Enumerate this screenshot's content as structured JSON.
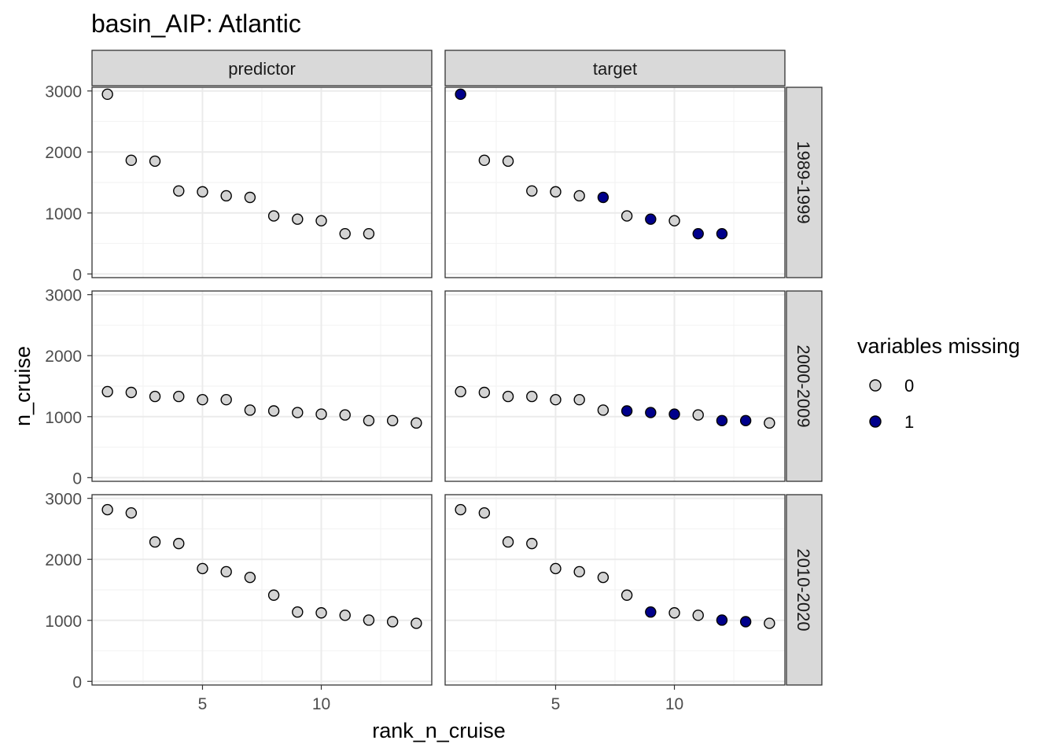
{
  "chart_data": {
    "type": "scatter",
    "title": "basin_AIP: Atlantic",
    "xlabel": "rank_n_cruise",
    "ylabel": "n_cruise",
    "xlim": [
      0.35,
      14.65
    ],
    "ylim": [
      -60,
      3060
    ],
    "x_ticks": [
      5,
      10
    ],
    "y_ticks": [
      0,
      1000,
      2000,
      3000
    ],
    "grid": true,
    "columns": [
      "predictor",
      "target"
    ],
    "rows": [
      "1989-1999",
      "2000-2009",
      "2010-2020"
    ],
    "legend": {
      "title": "variables missing",
      "placement": "right",
      "entries": [
        {
          "label": "0",
          "color": "#d3d3d3"
        },
        {
          "label": "1",
          "color": "#00008b"
        }
      ]
    },
    "panels_data": [
      {
        "period": "1989-1999",
        "x": [
          1,
          2,
          3,
          4,
          5,
          6,
          7,
          8,
          9,
          10,
          11,
          12
        ],
        "y": [
          2946,
          1863,
          1849,
          1361,
          1347,
          1281,
          1255,
          951,
          898,
          872,
          660,
          660
        ],
        "target_missing": [
          1,
          0,
          0,
          0,
          0,
          0,
          1,
          0,
          1,
          0,
          1,
          1
        ]
      },
      {
        "period": "2000-2009",
        "x": [
          1,
          2,
          3,
          4,
          5,
          6,
          7,
          8,
          9,
          10,
          11,
          12,
          13,
          14
        ],
        "y": [
          1410,
          1397,
          1331,
          1331,
          1278,
          1278,
          1107,
          1094,
          1067,
          1041,
          1028,
          935,
          935,
          896
        ],
        "target_missing": [
          0,
          0,
          0,
          0,
          0,
          0,
          0,
          1,
          1,
          1,
          0,
          1,
          1,
          0
        ]
      },
      {
        "period": "2010-2020",
        "x": [
          1,
          2,
          3,
          4,
          5,
          6,
          7,
          8,
          9,
          10,
          11,
          12,
          13,
          14
        ],
        "y": [
          2814,
          2761,
          2285,
          2259,
          1849,
          1797,
          1704,
          1413,
          1136,
          1123,
          1083,
          1004,
          978,
          951
        ],
        "target_missing": [
          0,
          0,
          0,
          0,
          0,
          0,
          0,
          0,
          1,
          0,
          0,
          1,
          1,
          0
        ]
      }
    ]
  }
}
